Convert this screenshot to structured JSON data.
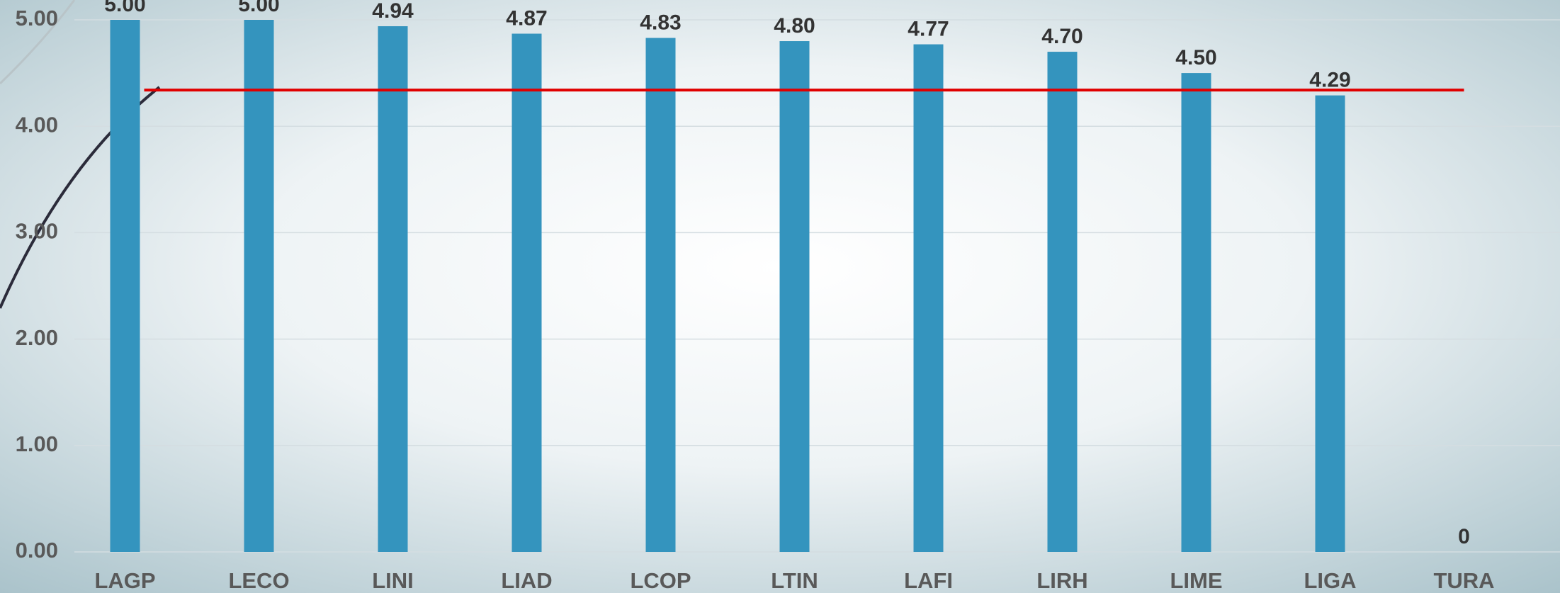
{
  "chart_data": {
    "type": "bar",
    "categories": [
      "LAGP",
      "LECO",
      "LINI",
      "LIAD",
      "LCOP",
      "LTIN",
      "LAFI",
      "LIRH",
      "LIME",
      "LIGA",
      "TURA"
    ],
    "values": [
      5.0,
      5.0,
      4.94,
      4.87,
      4.83,
      4.8,
      4.77,
      4.7,
      4.5,
      4.29,
      0
    ],
    "value_labels": [
      "5.00",
      "5.00",
      "4.94",
      "4.87",
      "4.83",
      "4.80",
      "4.77",
      "4.70",
      "4.50",
      "4.29",
      "0"
    ],
    "color": "#3494be",
    "ylim": [
      0,
      5
    ],
    "yticks": [
      {
        "value": 0,
        "label": "0.00"
      },
      {
        "value": 1,
        "label": "1.00"
      },
      {
        "value": 2,
        "label": "2.00"
      },
      {
        "value": 3,
        "label": "3.00"
      },
      {
        "value": 4,
        "label": "4.00"
      },
      {
        "value": 5,
        "label": "5.00"
      }
    ],
    "grid": true,
    "reference_line": 4.34,
    "reference_line_color": "#e00000"
  }
}
